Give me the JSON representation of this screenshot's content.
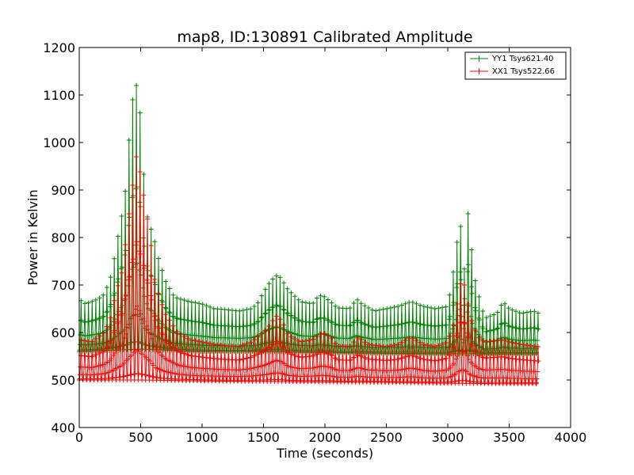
{
  "chart_data": {
    "type": "line",
    "title": "map8, ID:130891 Calibrated Amplitude",
    "xlabel": "Time (seconds)",
    "ylabel": "Power in Kelvin",
    "xlim": [
      0,
      4000
    ],
    "ylim": [
      400,
      1200
    ],
    "xticks": [
      0,
      500,
      1000,
      1500,
      2000,
      2500,
      3000,
      3500,
      4000
    ],
    "yticks": [
      400,
      500,
      600,
      700,
      800,
      900,
      1000,
      1100,
      1200
    ],
    "xtick_labels": [
      "0",
      "500",
      "1000",
      "1500",
      "2000",
      "2500",
      "3000",
      "3500",
      "4000"
    ],
    "ytick_labels": [
      "400",
      "500",
      "600",
      "700",
      "800",
      "900",
      "1000",
      "1100",
      "1200"
    ],
    "grid": false,
    "legend_position": "top-right",
    "marker": "plus",
    "series": [
      {
        "name": "YY1 Tsys621.40",
        "color": "#008000",
        "sweep_period_s": 30,
        "upper_envelope": [
          [
            0,
            670
          ],
          [
            50,
            660
          ],
          [
            100,
            665
          ],
          [
            150,
            670
          ],
          [
            200,
            680
          ],
          [
            250,
            710
          ],
          [
            300,
            775
          ],
          [
            330,
            830
          ],
          [
            360,
            860
          ],
          [
            390,
            935
          ],
          [
            420,
            1075
          ],
          [
            450,
            1105
          ],
          [
            470,
            1125
          ],
          [
            500,
            1050
          ],
          [
            530,
            910
          ],
          [
            560,
            830
          ],
          [
            600,
            810
          ],
          [
            640,
            760
          ],
          [
            700,
            710
          ],
          [
            760,
            680
          ],
          [
            800,
            672
          ],
          [
            900,
            665
          ],
          [
            1000,
            660
          ],
          [
            1100,
            650
          ],
          [
            1200,
            648
          ],
          [
            1300,
            645
          ],
          [
            1400,
            650
          ],
          [
            1450,
            660
          ],
          [
            1500,
            685
          ],
          [
            1550,
            705
          ],
          [
            1600,
            720
          ],
          [
            1640,
            715
          ],
          [
            1700,
            690
          ],
          [
            1800,
            665
          ],
          [
            1900,
            660
          ],
          [
            1950,
            678
          ],
          [
            2000,
            675
          ],
          [
            2100,
            652
          ],
          [
            2200,
            650
          ],
          [
            2260,
            670
          ],
          [
            2300,
            660
          ],
          [
            2400,
            645
          ],
          [
            2500,
            650
          ],
          [
            2600,
            655
          ],
          [
            2700,
            665
          ],
          [
            2800,
            655
          ],
          [
            2900,
            650
          ],
          [
            3000,
            655
          ],
          [
            3050,
            735
          ],
          [
            3100,
            845
          ],
          [
            3130,
            715
          ],
          [
            3150,
            790
          ],
          [
            3170,
            870
          ],
          [
            3200,
            755
          ],
          [
            3230,
            700
          ],
          [
            3300,
            630
          ],
          [
            3400,
            640
          ],
          [
            3450,
            665
          ],
          [
            3500,
            650
          ],
          [
            3600,
            640
          ],
          [
            3700,
            645
          ],
          [
            3740,
            640
          ]
        ],
        "lower_envelope": [
          [
            0,
            560
          ],
          [
            200,
            562
          ],
          [
            500,
            565
          ],
          [
            1000,
            560
          ],
          [
            1500,
            560
          ],
          [
            2000,
            558
          ],
          [
            2500,
            556
          ],
          [
            3000,
            555
          ],
          [
            3500,
            555
          ],
          [
            3740,
            555
          ]
        ]
      },
      {
        "name": "XX1 Tsys522.66",
        "color": "#ff0000",
        "sweep_period_s": 30,
        "upper_envelope": [
          [
            0,
            585
          ],
          [
            100,
            580
          ],
          [
            200,
            600
          ],
          [
            250,
            625
          ],
          [
            300,
            685
          ],
          [
            350,
            730
          ],
          [
            400,
            840
          ],
          [
            430,
            900
          ],
          [
            470,
            980
          ],
          [
            500,
            930
          ],
          [
            540,
            865
          ],
          [
            580,
            795
          ],
          [
            620,
            700
          ],
          [
            700,
            640
          ],
          [
            800,
            600
          ],
          [
            900,
            585
          ],
          [
            1000,
            580
          ],
          [
            1100,
            575
          ],
          [
            1200,
            572
          ],
          [
            1300,
            570
          ],
          [
            1400,
            580
          ],
          [
            1500,
            600
          ],
          [
            1550,
            615
          ],
          [
            1600,
            635
          ],
          [
            1650,
            625
          ],
          [
            1700,
            595
          ],
          [
            1800,
            580
          ],
          [
            1900,
            585
          ],
          [
            1980,
            600
          ],
          [
            2050,
            590
          ],
          [
            2100,
            572
          ],
          [
            2200,
            570
          ],
          [
            2270,
            590
          ],
          [
            2350,
            575
          ],
          [
            2500,
            570
          ],
          [
            2600,
            575
          ],
          [
            2700,
            590
          ],
          [
            2800,
            575
          ],
          [
            2900,
            570
          ],
          [
            3000,
            580
          ],
          [
            3050,
            620
          ],
          [
            3100,
            700
          ],
          [
            3120,
            710
          ],
          [
            3150,
            690
          ],
          [
            3170,
            650
          ],
          [
            3200,
            620
          ],
          [
            3250,
            590
          ],
          [
            3300,
            580
          ],
          [
            3450,
            585
          ],
          [
            3500,
            580
          ],
          [
            3600,
            575
          ],
          [
            3740,
            570
          ]
        ],
        "lower_envelope": [
          [
            0,
            500
          ],
          [
            500,
            500
          ],
          [
            1000,
            498
          ],
          [
            1500,
            497
          ],
          [
            2000,
            496
          ],
          [
            2500,
            495
          ],
          [
            3000,
            493
          ],
          [
            3500,
            492
          ],
          [
            3740,
            492
          ]
        ]
      }
    ]
  }
}
